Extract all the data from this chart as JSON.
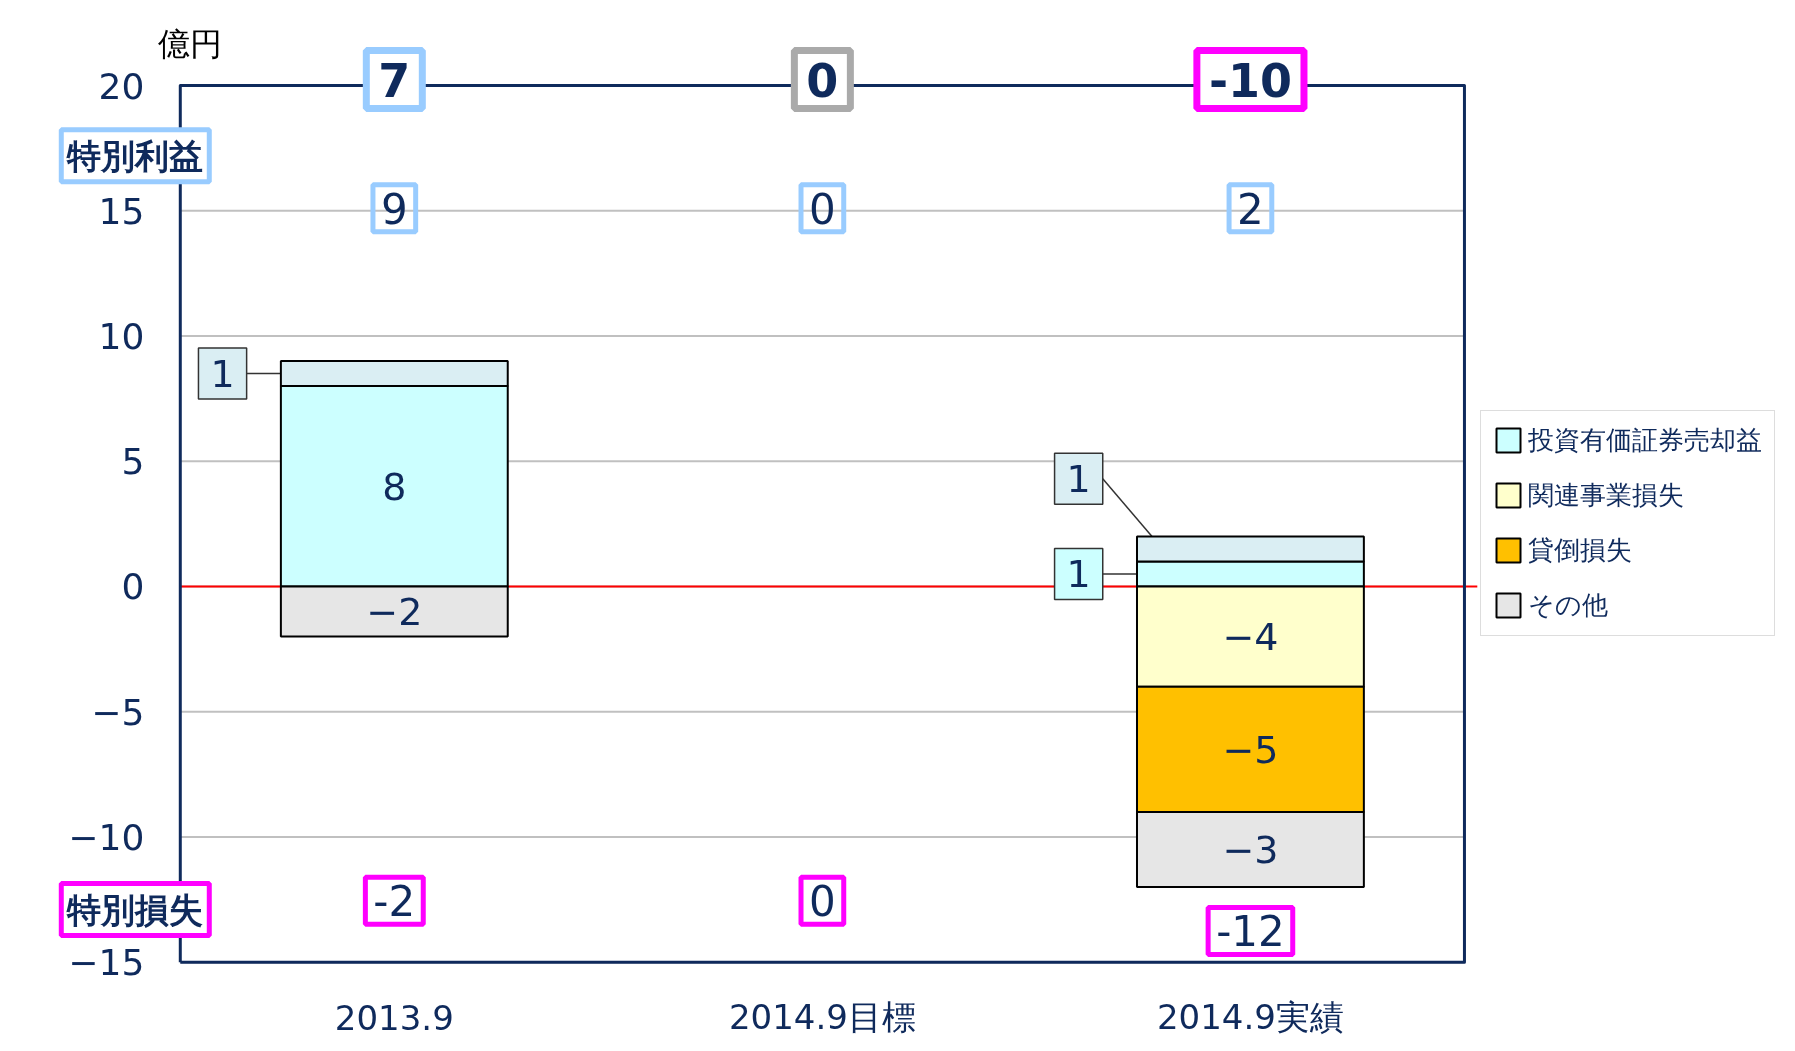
{
  "chart_data": {
    "type": "bar",
    "stacked": true,
    "ylabel": "億円",
    "categories": [
      "2013.9",
      "2014.9目標",
      "2014.9実績"
    ],
    "series": [
      {
        "name": "投資有価証券売却益",
        "color": "#ccffff",
        "values": [
          8,
          null,
          1
        ],
        "value_labels": [
          "8",
          null,
          "1"
        ]
      },
      {
        "color": "#daeef3",
        "values": [
          1,
          null,
          1
        ],
        "value_labels": [
          "1",
          null,
          "1"
        ]
      },
      {
        "name": "関連事業損失",
        "color": "#ffffcc",
        "values": [
          null,
          null,
          -4
        ],
        "value_labels": [
          null,
          null,
          "−4"
        ]
      },
      {
        "name": "貸倒損失",
        "color": "#ffc000",
        "values": [
          null,
          null,
          -5
        ],
        "value_labels": [
          null,
          null,
          "−5"
        ]
      },
      {
        "name": "その他",
        "color": "#e6e6e6",
        "values": [
          -2,
          null,
          -3
        ],
        "value_labels": [
          "−2",
          null,
          "−3"
        ]
      }
    ],
    "ylim": [
      -15,
      20
    ],
    "yticks": [
      {
        "value": -15,
        "label": "−15"
      },
      {
        "value": -10,
        "label": "−10"
      },
      {
        "value": -5,
        "label": "−5"
      },
      0,
      5,
      10,
      15,
      20
    ],
    "grid": "y",
    "legend": "right",
    "ref_lines": [
      {
        "axis": "y",
        "value": 0,
        "color": "#ff0000"
      }
    ],
    "annotations": [
      "7",
      "0",
      "-10",
      "9",
      "0",
      "2",
      "-2",
      "0",
      "-12",
      "特別利益",
      "特別損失"
    ]
  }
}
